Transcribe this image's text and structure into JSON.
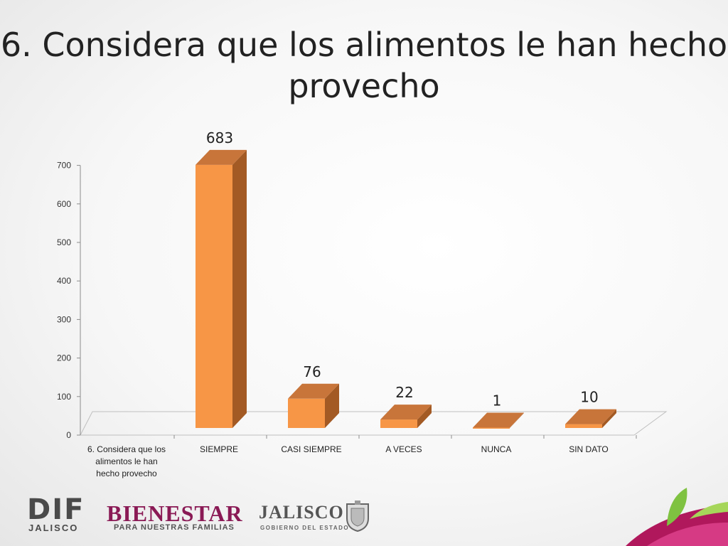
{
  "title": "6. Considera que los alimentos le han hecho provecho",
  "chart_data": {
    "type": "bar",
    "categories": [
      "6. Considera que los alimentos le han hecho provecho",
      "SIEMPRE",
      "CASI SIEMPRE",
      "A VECES",
      "NUNCA",
      "SIN DATO"
    ],
    "values": [
      null,
      683,
      76,
      22,
      1,
      10
    ],
    "data_labels": [
      "",
      "683",
      "76",
      "22",
      "1",
      "10"
    ],
    "ylim": [
      0,
      700
    ],
    "yticks": [
      0,
      100,
      200,
      300,
      400,
      500,
      600,
      700
    ],
    "bar_color": "#f79646",
    "bar_side_color": "#a35a24",
    "bar_top_color": "#c8753a",
    "three_d": true,
    "grid": false,
    "legend": "none"
  },
  "logos": {
    "dif": {
      "word": "DIF",
      "sub": "JALISCO"
    },
    "bienestar": {
      "word": "BIENESTAR",
      "sub": "PARA NUESTRAS FAMILIAS"
    },
    "jalisco": {
      "word": "JALISCO",
      "sub": "GOBIERNO DEL ESTADO"
    }
  }
}
